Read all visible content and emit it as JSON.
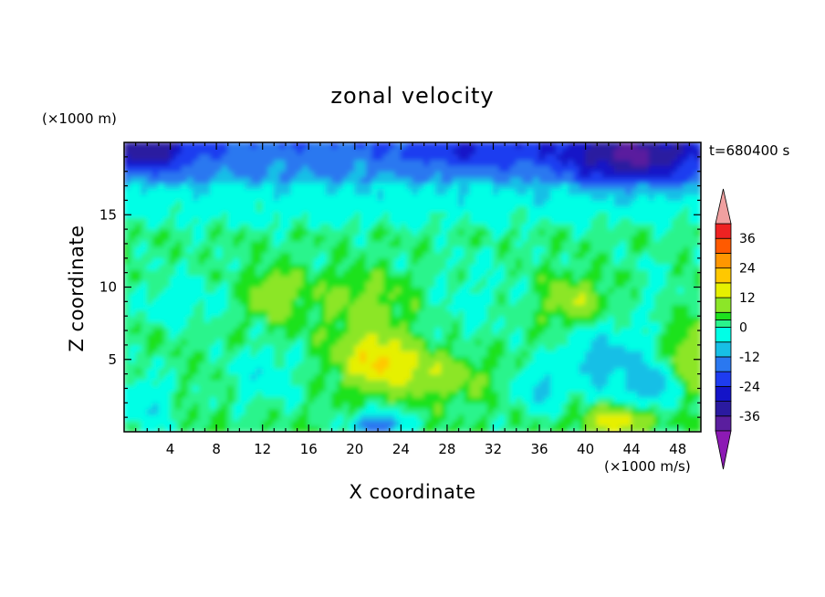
{
  "chart_data": {
    "type": "heatmap",
    "title": "zonal velocity",
    "xlabel": "X coordinate",
    "ylabel": "Z coordinate",
    "x_unit_label": "(×1000 m/s)",
    "y_unit_label": "(×1000 m)",
    "time_label": "t=680400 s",
    "xlim": [
      0,
      50
    ],
    "ylim": [
      0,
      20
    ],
    "x_ticks": [
      4,
      8,
      12,
      16,
      20,
      24,
      28,
      32,
      36,
      40,
      44,
      48
    ],
    "y_ticks": [
      5,
      10,
      15
    ],
    "colorbar": {
      "ticks": [
        36,
        24,
        12,
        0,
        -12,
        -24,
        -36
      ],
      "range": [
        -42,
        42
      ],
      "extend": "both",
      "levels": [
        {
          "lo": -42,
          "hi": -36,
          "color": "#5a1e9e"
        },
        {
          "lo": -36,
          "hi": -30,
          "color": "#2a1aa0"
        },
        {
          "lo": -30,
          "hi": -24,
          "color": "#1414c8"
        },
        {
          "lo": -24,
          "hi": -18,
          "color": "#1e3cf0"
        },
        {
          "lo": -18,
          "hi": -12,
          "color": "#2a78f0"
        },
        {
          "lo": -12,
          "hi": -6,
          "color": "#17bfe6"
        },
        {
          "lo": -6,
          "hi": 0,
          "color": "#00ffe6"
        },
        {
          "lo": 0,
          "hi": 3,
          "color": "#29f48c"
        },
        {
          "lo": 3,
          "hi": 6,
          "color": "#1ee21e"
        },
        {
          "lo": 6,
          "hi": 12,
          "color": "#8ce628"
        },
        {
          "lo": 12,
          "hi": 18,
          "color": "#e6f000"
        },
        {
          "lo": 18,
          "hi": 24,
          "color": "#ffc800"
        },
        {
          "lo": 24,
          "hi": 30,
          "color": "#ff9600"
        },
        {
          "lo": 30,
          "hi": 36,
          "color": "#ff5a00"
        },
        {
          "lo": 36,
          "hi": 42,
          "color": "#ee2222"
        }
      ],
      "under_color": "#8c1ab4",
      "over_color": "#f0a0a0"
    },
    "field_features": [
      {
        "x": 2,
        "z": 19.5,
        "value": -18,
        "sx": 4,
        "sz": 1.5
      },
      {
        "x": 44,
        "z": 19,
        "value": -22,
        "sx": 6,
        "sz": 2
      },
      {
        "x": 30,
        "z": 19.3,
        "value": -8,
        "sx": 6,
        "sz": 1.2
      },
      {
        "x": 22,
        "z": 5,
        "value": 16,
        "sx": 3,
        "sz": 1.8
      },
      {
        "x": 27,
        "z": 4,
        "value": 8,
        "sx": 4,
        "sz": 1.5
      },
      {
        "x": 42,
        "z": 5,
        "value": -12,
        "sx": 3.5,
        "sz": 2.5
      },
      {
        "x": 22,
        "z": 0.5,
        "value": -22,
        "sx": 2,
        "sz": 0.8
      },
      {
        "x": 43,
        "z": 0.8,
        "value": 14,
        "sx": 3,
        "sz": 1
      },
      {
        "x": 12,
        "z": 4,
        "value": -6,
        "sx": 3,
        "sz": 2
      },
      {
        "x": 46,
        "z": 3,
        "value": -12,
        "sx": 2,
        "sz": 1.5
      },
      {
        "x": 2,
        "z": 2,
        "value": -8,
        "sx": 2,
        "sz": 2
      },
      {
        "x": 36,
        "z": 3,
        "value": -10,
        "sx": 2,
        "sz": 1.5
      },
      {
        "x": 5,
        "z": 9,
        "value": -6,
        "sx": 4,
        "sz": 2
      },
      {
        "x": 13,
        "z": 9.5,
        "value": 8,
        "sx": 2,
        "sz": 1.5
      },
      {
        "x": 21,
        "z": 9,
        "value": 5,
        "sx": 4,
        "sz": 2
      },
      {
        "x": 30,
        "z": 9,
        "value": -4,
        "sx": 5,
        "sz": 3
      },
      {
        "x": 39,
        "z": 9,
        "value": 8,
        "sx": 2.5,
        "sz": 1.5
      },
      {
        "x": 46,
        "z": 10,
        "value": -4,
        "sx": 2,
        "sz": 2
      },
      {
        "x": 49,
        "z": 5,
        "value": 10,
        "sx": 1.5,
        "sz": 2
      }
    ]
  }
}
